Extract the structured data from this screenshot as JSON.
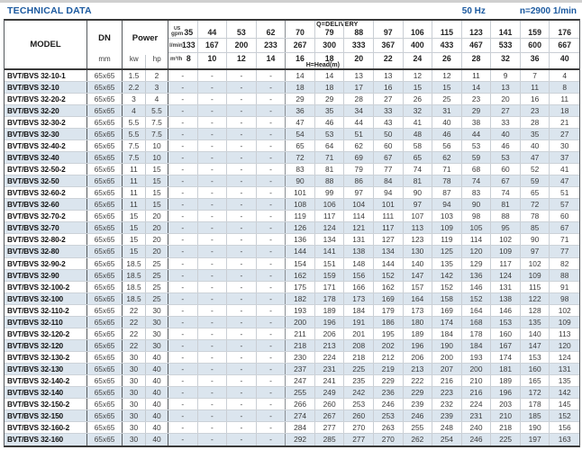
{
  "title": "TECHNICAL DATA",
  "header_right": {
    "frequency": "50 Hz",
    "speed": "n=2900 1/min"
  },
  "colors": {
    "accent_blue": "#1c5aa0",
    "alt_row": "#dbe5ee"
  },
  "table": {
    "col_headers": {
      "model": "MODEL",
      "dn": "DN",
      "dn_unit": "mm",
      "power": "Power",
      "kw": "kw",
      "hp": "hp"
    },
    "delivery_label": "Q=DELIVERY",
    "head_label": "H=Head(m)",
    "units": {
      "gpm_top": "US",
      "gpm_bottom": "gpm",
      "lmin": "l/min",
      "m3h": "m³/h"
    },
    "q_gpm": [
      35,
      44,
      53,
      62,
      70,
      79,
      88,
      97,
      106,
      115,
      123,
      141,
      159,
      176
    ],
    "q_lmin": [
      133,
      167,
      200,
      233,
      267,
      300,
      333,
      367,
      400,
      433,
      467,
      533,
      600,
      667
    ],
    "q_m3h": [
      8,
      10,
      12,
      14,
      16,
      18,
      20,
      22,
      24,
      26,
      28,
      32,
      36,
      40
    ],
    "rows": [
      {
        "model": "BVT/BVS 32-10-1",
        "dn": "65x65",
        "kw": "1.5",
        "hp": "2",
        "head": [
          "-",
          "-",
          "-",
          "-",
          "14",
          "14",
          "13",
          "13",
          "12",
          "12",
          "11",
          "9",
          "7",
          "4"
        ]
      },
      {
        "model": "BVT/BVS 32-10",
        "dn": "65x65",
        "kw": "2.2",
        "hp": "3",
        "head": [
          "-",
          "-",
          "-",
          "-",
          "18",
          "18",
          "17",
          "16",
          "15",
          "15",
          "14",
          "13",
          "11",
          "8"
        ]
      },
      {
        "model": "BVT/BVS 32-20-2",
        "dn": "65x65",
        "kw": "3",
        "hp": "4",
        "head": [
          "-",
          "-",
          "-",
          "-",
          "29",
          "29",
          "28",
          "27",
          "26",
          "25",
          "23",
          "20",
          "16",
          "11"
        ]
      },
      {
        "model": "BVT/BVS 32-20",
        "dn": "65x65",
        "kw": "4",
        "hp": "5.5",
        "head": [
          "-",
          "-",
          "-",
          "-",
          "36",
          "35",
          "34",
          "33",
          "32",
          "31",
          "29",
          "27",
          "23",
          "18"
        ]
      },
      {
        "model": "BVT/BVS 32-30-2",
        "dn": "65x65",
        "kw": "5.5",
        "hp": "7.5",
        "head": [
          "-",
          "-",
          "-",
          "-",
          "47",
          "46",
          "44",
          "43",
          "41",
          "40",
          "38",
          "33",
          "28",
          "21"
        ]
      },
      {
        "model": "BVT/BVS 32-30",
        "dn": "65x65",
        "kw": "5.5",
        "hp": "7.5",
        "head": [
          "-",
          "-",
          "-",
          "-",
          "54",
          "53",
          "51",
          "50",
          "48",
          "46",
          "44",
          "40",
          "35",
          "27"
        ]
      },
      {
        "model": "BVT/BVS 32-40-2",
        "dn": "65x65",
        "kw": "7.5",
        "hp": "10",
        "head": [
          "-",
          "-",
          "-",
          "-",
          "65",
          "64",
          "62",
          "60",
          "58",
          "56",
          "53",
          "46",
          "40",
          "30"
        ]
      },
      {
        "model": "BVT/BVS 32-40",
        "dn": "65x65",
        "kw": "7.5",
        "hp": "10",
        "head": [
          "-",
          "-",
          "-",
          "-",
          "72",
          "71",
          "69",
          "67",
          "65",
          "62",
          "59",
          "53",
          "47",
          "37"
        ]
      },
      {
        "model": "BVT/BVS 32-50-2",
        "dn": "65x65",
        "kw": "11",
        "hp": "15",
        "head": [
          "-",
          "-",
          "-",
          "-",
          "83",
          "81",
          "79",
          "77",
          "74",
          "71",
          "68",
          "60",
          "52",
          "41"
        ]
      },
      {
        "model": "BVT/BVS 32-50",
        "dn": "65x65",
        "kw": "11",
        "hp": "15",
        "head": [
          "-",
          "-",
          "-",
          "-",
          "90",
          "88",
          "86",
          "84",
          "81",
          "78",
          "74",
          "67",
          "59",
          "47"
        ]
      },
      {
        "model": "BVT/BVS 32-60-2",
        "dn": "65x65",
        "kw": "11",
        "hp": "15",
        "head": [
          "-",
          "-",
          "-",
          "-",
          "101",
          "99",
          "97",
          "94",
          "90",
          "87",
          "83",
          "74",
          "65",
          "51"
        ]
      },
      {
        "model": "BVT/BVS 32-60",
        "dn": "65x65",
        "kw": "11",
        "hp": "15",
        "head": [
          "-",
          "-",
          "-",
          "-",
          "108",
          "106",
          "104",
          "101",
          "97",
          "94",
          "90",
          "81",
          "72",
          "57"
        ]
      },
      {
        "model": "BVT/BVS 32-70-2",
        "dn": "65x65",
        "kw": "15",
        "hp": "20",
        "head": [
          "-",
          "-",
          "-",
          "-",
          "119",
          "117",
          "114",
          "111",
          "107",
          "103",
          "98",
          "88",
          "78",
          "60"
        ]
      },
      {
        "model": "BVT/BVS 32-70",
        "dn": "65x65",
        "kw": "15",
        "hp": "20",
        "head": [
          "-",
          "-",
          "-",
          "-",
          "126",
          "124",
          "121",
          "117",
          "113",
          "109",
          "105",
          "95",
          "85",
          "67"
        ]
      },
      {
        "model": "BVT/BVS 32-80-2",
        "dn": "65x65",
        "kw": "15",
        "hp": "20",
        "head": [
          "-",
          "-",
          "-",
          "-",
          "136",
          "134",
          "131",
          "127",
          "123",
          "119",
          "114",
          "102",
          "90",
          "71"
        ]
      },
      {
        "model": "BVT/BVS 32-80",
        "dn": "65x65",
        "kw": "15",
        "hp": "20",
        "head": [
          "-",
          "-",
          "-",
          "-",
          "144",
          "141",
          "138",
          "134",
          "130",
          "125",
          "120",
          "109",
          "97",
          "77"
        ]
      },
      {
        "model": "BVT/BVS 32-90-2",
        "dn": "65x65",
        "kw": "18.5",
        "hp": "25",
        "head": [
          "-",
          "-",
          "-",
          "-",
          "154",
          "151",
          "148",
          "144",
          "140",
          "135",
          "129",
          "117",
          "102",
          "82"
        ]
      },
      {
        "model": "BVT/BVS 32-90",
        "dn": "65x65",
        "kw": "18.5",
        "hp": "25",
        "head": [
          "-",
          "-",
          "-",
          "-",
          "162",
          "159",
          "156",
          "152",
          "147",
          "142",
          "136",
          "124",
          "109",
          "88"
        ]
      },
      {
        "model": "BVT/BVS 32-100-2",
        "dn": "65x65",
        "kw": "18.5",
        "hp": "25",
        "head": [
          "-",
          "-",
          "-",
          "-",
          "175",
          "171",
          "166",
          "162",
          "157",
          "152",
          "146",
          "131",
          "115",
          "91"
        ]
      },
      {
        "model": "BVT/BVS 32-100",
        "dn": "65x65",
        "kw": "18.5",
        "hp": "25",
        "head": [
          "-",
          "-",
          "-",
          "-",
          "182",
          "178",
          "173",
          "169",
          "164",
          "158",
          "152",
          "138",
          "122",
          "98"
        ]
      },
      {
        "model": "BVT/BVS 32-110-2",
        "dn": "65x65",
        "kw": "22",
        "hp": "30",
        "head": [
          "-",
          "-",
          "-",
          "-",
          "193",
          "189",
          "184",
          "179",
          "173",
          "169",
          "164",
          "146",
          "128",
          "102"
        ]
      },
      {
        "model": "BVT/BVS 32-110",
        "dn": "65x65",
        "kw": "22",
        "hp": "30",
        "head": [
          "-",
          "-",
          "-",
          "-",
          "200",
          "196",
          "191",
          "186",
          "180",
          "174",
          "168",
          "153",
          "135",
          "109"
        ]
      },
      {
        "model": "BVT/BVS 32-120-2",
        "dn": "65x65",
        "kw": "22",
        "hp": "30",
        "head": [
          "-",
          "-",
          "-",
          "-",
          "211",
          "206",
          "201",
          "195",
          "189",
          "184",
          "178",
          "160",
          "140",
          "113"
        ]
      },
      {
        "model": "BVT/BVS 32-120",
        "dn": "65x65",
        "kw": "22",
        "hp": "30",
        "head": [
          "-",
          "-",
          "-",
          "-",
          "218",
          "213",
          "208",
          "202",
          "196",
          "190",
          "184",
          "167",
          "147",
          "120"
        ]
      },
      {
        "model": "BVT/BVS 32-130-2",
        "dn": "65x65",
        "kw": "30",
        "hp": "40",
        "head": [
          "-",
          "-",
          "-",
          "-",
          "230",
          "224",
          "218",
          "212",
          "206",
          "200",
          "193",
          "174",
          "153",
          "124"
        ]
      },
      {
        "model": "BVT/BVS 32-130",
        "dn": "65x65",
        "kw": "30",
        "hp": "40",
        "head": [
          "-",
          "-",
          "-",
          "-",
          "237",
          "231",
          "225",
          "219",
          "213",
          "207",
          "200",
          "181",
          "160",
          "131"
        ]
      },
      {
        "model": "BVT/BVS 32-140-2",
        "dn": "65x65",
        "kw": "30",
        "hp": "40",
        "head": [
          "-",
          "-",
          "-",
          "-",
          "247",
          "241",
          "235",
          "229",
          "222",
          "216",
          "210",
          "189",
          "165",
          "135"
        ]
      },
      {
        "model": "BVT/BVS 32-140",
        "dn": "65x65",
        "kw": "30",
        "hp": "40",
        "head": [
          "-",
          "-",
          "-",
          "-",
          "255",
          "249",
          "242",
          "236",
          "229",
          "223",
          "216",
          "196",
          "172",
          "142"
        ]
      },
      {
        "model": "BVT/BVS 32-150-2",
        "dn": "65x65",
        "kw": "30",
        "hp": "40",
        "head": [
          "-",
          "-",
          "-",
          "-",
          "266",
          "260",
          "253",
          "246",
          "239",
          "232",
          "224",
          "203",
          "178",
          "145"
        ]
      },
      {
        "model": "BVT/BVS 32-150",
        "dn": "65x65",
        "kw": "30",
        "hp": "40",
        "head": [
          "-",
          "-",
          "-",
          "-",
          "274",
          "267",
          "260",
          "253",
          "246",
          "239",
          "231",
          "210",
          "185",
          "152"
        ]
      },
      {
        "model": "BVT/BVS 32-160-2",
        "dn": "65x65",
        "kw": "30",
        "hp": "40",
        "head": [
          "-",
          "-",
          "-",
          "-",
          "284",
          "277",
          "270",
          "263",
          "255",
          "248",
          "240",
          "218",
          "190",
          "156"
        ]
      },
      {
        "model": "BVT/BVS 32-160",
        "dn": "65x65",
        "kw": "30",
        "hp": "40",
        "head": [
          "-",
          "-",
          "-",
          "-",
          "292",
          "285",
          "277",
          "270",
          "262",
          "254",
          "246",
          "225",
          "197",
          "163"
        ]
      }
    ]
  }
}
